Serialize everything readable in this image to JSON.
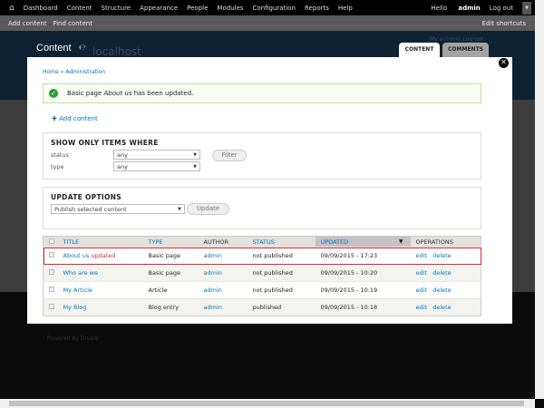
{
  "toolbar": {
    "items": [
      "Dashboard",
      "Content",
      "Structure",
      "Appearance",
      "People",
      "Modules",
      "Configuration",
      "Reports",
      "Help"
    ],
    "hello": "Hello",
    "user": "admin",
    "logout": "Log out"
  },
  "shortcuts": {
    "items": [
      "Add content",
      "Find content"
    ],
    "edit": "Edit shortcuts"
  },
  "header": {
    "title": "Content",
    "site": "localhost",
    "account_links": "My account   Log out",
    "tabs": [
      "CONTENT",
      "COMMENTS"
    ]
  },
  "modal": {
    "breadcrumb": "Home » Administration",
    "message": {
      "prefix": "Basic page ",
      "title": "About us",
      "suffix": " has been updated."
    },
    "add_content": "Add content",
    "filter": {
      "heading": "SHOW ONLY ITEMS WHERE",
      "status_label": "status",
      "status_value": "any",
      "type_label": "type",
      "type_value": "any",
      "button": "Filter"
    },
    "update": {
      "heading": "UPDATE OPTIONS",
      "value": "Publish selected content",
      "button": "Update"
    },
    "table": {
      "columns": [
        "TITLE",
        "TYPE",
        "AUTHOR",
        "STATUS",
        "UPDATED",
        "OPERATIONS"
      ],
      "rows": [
        {
          "title": "About us",
          "badge": "updated",
          "type": "Basic page",
          "author": "admin",
          "status": "not published",
          "updated": "09/09/2015 - 17:23",
          "edit": "edit",
          "delete": "delete"
        },
        {
          "title": "Who are we",
          "badge": "",
          "type": "Basic page",
          "author": "admin",
          "status": "not published",
          "updated": "09/09/2015 - 10:20",
          "edit": "edit",
          "delete": "delete"
        },
        {
          "title": "My Article",
          "badge": "",
          "type": "Article",
          "author": "admin",
          "status": "not published",
          "updated": "09/09/2015 - 10:19",
          "edit": "edit",
          "delete": "delete"
        },
        {
          "title": "My Blog",
          "badge": "",
          "type": "Blog entry",
          "author": "admin",
          "status": "published",
          "updated": "09/09/2015 - 10:18",
          "edit": "edit",
          "delete": "delete"
        }
      ]
    }
  },
  "footer": {
    "powered": "Powered by Drupal"
  },
  "colors": {
    "link": "#0074bd",
    "highlight": "#d12a35",
    "success_bg": "#f8fff0",
    "success_icon": "#2e9a3c"
  }
}
